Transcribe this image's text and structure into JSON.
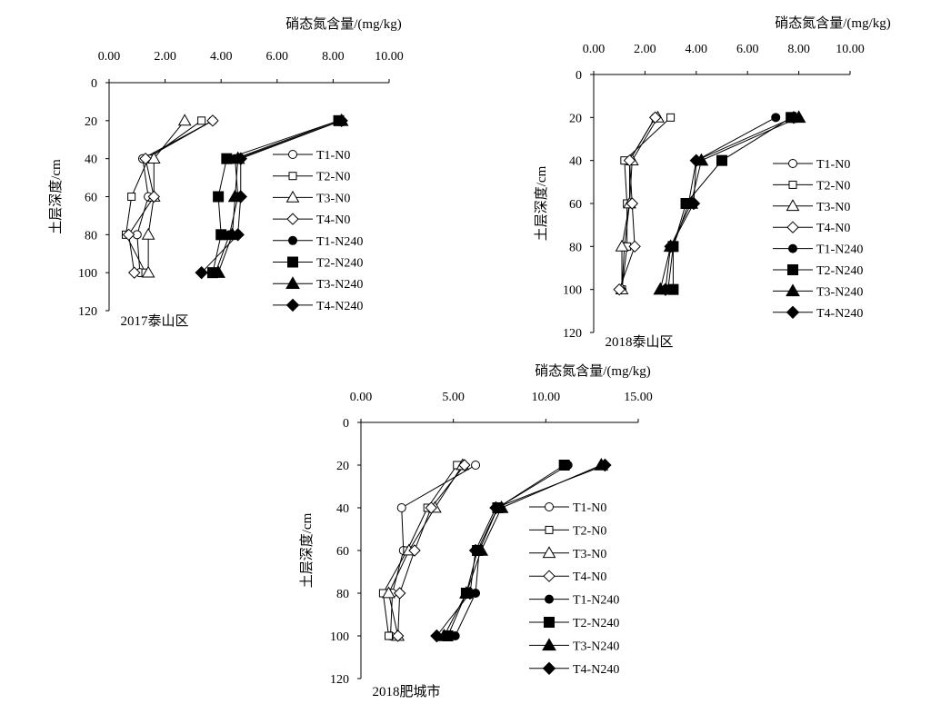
{
  "chart_data": [
    {
      "type": "line",
      "title": "2017泰山区",
      "xlabel": "硝态氮含量/(mg/kg)",
      "ylabel": "土层深度/cm",
      "xlim": [
        0,
        10
      ],
      "ylim": [
        0,
        120
      ],
      "y_reversed": true,
      "x_axis_position": "top",
      "xticks": [
        0,
        2,
        4,
        6,
        8,
        10
      ],
      "xtick_labels": [
        "0.00",
        "2.00",
        "4.00",
        "6.00",
        "8.00",
        "10.00"
      ],
      "yticks": [
        0,
        20,
        40,
        60,
        80,
        100,
        120
      ],
      "ytick_labels": [
        "0",
        "20",
        "40",
        "60",
        "80",
        "100",
        "120"
      ],
      "grid": false,
      "legend_position": "right",
      "depths": [
        20,
        40,
        60,
        80,
        100
      ],
      "series": [
        {
          "name": "T1-N0",
          "marker": "circle-open",
          "x": [
            3.7,
            1.2,
            1.4,
            1.0,
            1.1
          ]
        },
        {
          "name": "T2-N0",
          "marker": "square-open",
          "x": [
            3.3,
            1.4,
            0.8,
            0.6,
            1.3
          ]
        },
        {
          "name": "T3-N0",
          "marker": "triangle-open",
          "x": [
            2.7,
            1.6,
            1.6,
            1.4,
            1.4
          ]
        },
        {
          "name": "T4-N0",
          "marker": "diamond-open",
          "x": [
            3.7,
            1.3,
            1.6,
            0.7,
            0.9
          ]
        },
        {
          "name": "T1-N240",
          "marker": "circle-filled",
          "x": [
            8.2,
            4.5,
            4.6,
            4.3,
            3.8
          ]
        },
        {
          "name": "T2-N240",
          "marker": "square-filled",
          "x": [
            8.2,
            4.2,
            3.9,
            4.0,
            3.7
          ]
        },
        {
          "name": "T3-N240",
          "marker": "triangle-filled",
          "x": [
            8.3,
            4.6,
            4.5,
            4.4,
            3.9
          ]
        },
        {
          "name": "T4-N240",
          "marker": "diamond-filled",
          "x": [
            8.3,
            4.7,
            4.7,
            4.6,
            3.3
          ]
        }
      ]
    },
    {
      "type": "line",
      "title": "2018泰山区",
      "xlabel": "硝态氮含量/(mg/kg)",
      "ylabel": "土层深度/cm",
      "xlim": [
        0,
        10
      ],
      "ylim": [
        0,
        120
      ],
      "y_reversed": true,
      "x_axis_position": "top",
      "xticks": [
        0,
        2,
        4,
        6,
        8,
        10
      ],
      "xtick_labels": [
        "0.00",
        "2.00",
        "4.00",
        "6.00",
        "8.00",
        "10.00"
      ],
      "yticks": [
        0,
        20,
        40,
        60,
        80,
        100,
        120
      ],
      "ytick_labels": [
        "0",
        "20",
        "40",
        "60",
        "80",
        "100",
        "120"
      ],
      "grid": false,
      "legend_position": "right",
      "depths": [
        20,
        40,
        60,
        80,
        100
      ],
      "series": [
        {
          "name": "T1-N0",
          "marker": "circle-open",
          "x": [
            2.4,
            1.4,
            1.4,
            1.2,
            1.1
          ]
        },
        {
          "name": "T2-N0",
          "marker": "square-open",
          "x": [
            3.0,
            1.2,
            1.3,
            1.3,
            1.1
          ]
        },
        {
          "name": "T3-N0",
          "marker": "triangle-open",
          "x": [
            2.5,
            1.5,
            1.4,
            1.1,
            1.1
          ]
        },
        {
          "name": "T4-N0",
          "marker": "diamond-open",
          "x": [
            2.4,
            1.4,
            1.5,
            1.6,
            1.0
          ]
        },
        {
          "name": "T1-N240",
          "marker": "circle-filled",
          "x": [
            7.1,
            4.0,
            3.7,
            3.1,
            2.9
          ]
        },
        {
          "name": "T2-N240",
          "marker": "square-filled",
          "x": [
            7.7,
            5.0,
            3.6,
            3.1,
            3.1
          ]
        },
        {
          "name": "T3-N240",
          "marker": "triangle-filled",
          "x": [
            8.0,
            4.2,
            3.8,
            3.0,
            2.6
          ]
        },
        {
          "name": "T4-N240",
          "marker": "diamond-filled",
          "x": [
            7.8,
            4.0,
            3.9,
            3.0,
            2.8
          ]
        }
      ]
    },
    {
      "type": "line",
      "title": "2018肥城市",
      "xlabel": "硝态氮含量/(mg/kg)",
      "ylabel": "土层深度/cm",
      "xlim": [
        0,
        15
      ],
      "ylim": [
        0,
        120
      ],
      "y_reversed": true,
      "x_axis_position": "top",
      "xticks": [
        0,
        5,
        10,
        15
      ],
      "xtick_labels": [
        "0.00",
        "5.00",
        "10.00",
        "15.00"
      ],
      "yticks": [
        0,
        20,
        40,
        60,
        80,
        100,
        120
      ],
      "ytick_labels": [
        "0",
        "20",
        "40",
        "60",
        "80",
        "100",
        "120"
      ],
      "grid": false,
      "legend_position": "right",
      "depths": [
        20,
        40,
        60,
        80,
        100
      ],
      "series": [
        {
          "name": "T1-N0",
          "marker": "circle-open",
          "x": [
            6.2,
            2.2,
            2.3,
            1.7,
            1.6
          ]
        },
        {
          "name": "T2-N0",
          "marker": "square-open",
          "x": [
            5.2,
            3.6,
            2.5,
            1.2,
            1.5
          ]
        },
        {
          "name": "T3-N0",
          "marker": "triangle-open",
          "x": [
            5.5,
            4.0,
            2.6,
            1.5,
            2.0
          ]
        },
        {
          "name": "T4-N0",
          "marker": "diamond-open",
          "x": [
            5.6,
            3.8,
            2.9,
            2.1,
            2.0
          ]
        },
        {
          "name": "T1-N240",
          "marker": "circle-filled",
          "x": [
            11.2,
            7.4,
            6.4,
            6.2,
            5.1
          ]
        },
        {
          "name": "T2-N240",
          "marker": "square-filled",
          "x": [
            11.0,
            7.4,
            6.3,
            5.7,
            4.7
          ]
        },
        {
          "name": "T3-N240",
          "marker": "triangle-filled",
          "x": [
            13.0,
            7.6,
            6.5,
            5.7,
            4.5
          ]
        },
        {
          "name": "T4-N240",
          "marker": "diamond-filled",
          "x": [
            13.2,
            7.3,
            6.2,
            5.9,
            4.1
          ]
        }
      ]
    }
  ]
}
